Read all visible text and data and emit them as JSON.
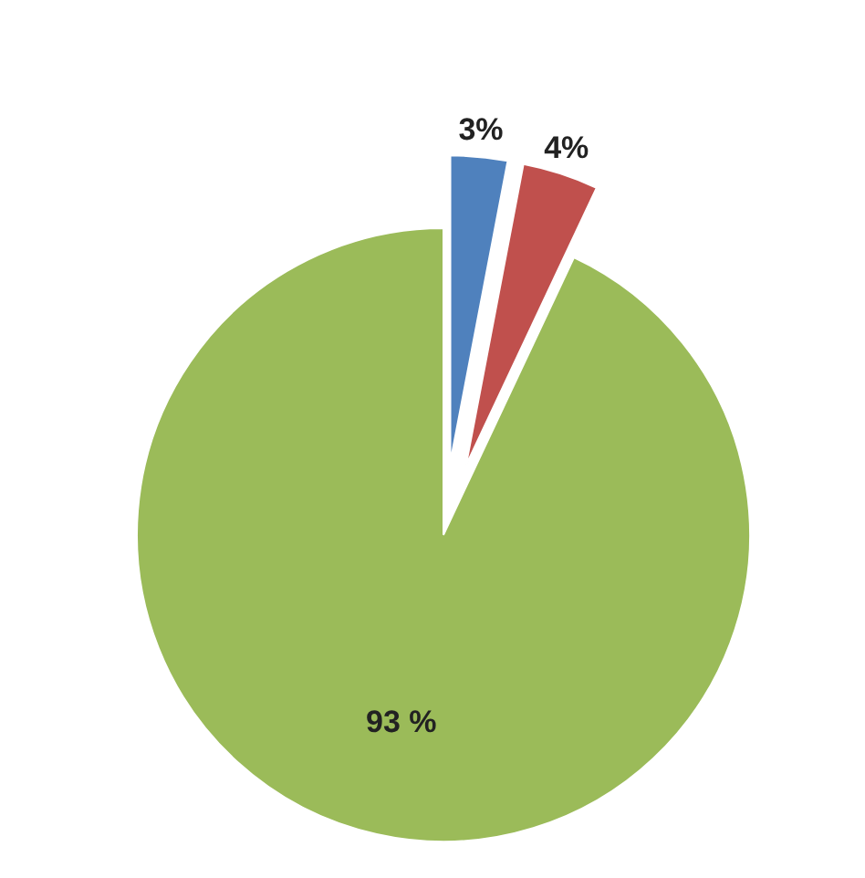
{
  "chart_data": {
    "type": "pie",
    "categories": [
      null,
      null,
      null
    ],
    "values": [
      3,
      4,
      93
    ],
    "colors": [
      "#4f81bd",
      "#c0504d",
      "#9bbb59"
    ],
    "value_labels": [
      "3%",
      "4%",
      "93 %"
    ]
  }
}
